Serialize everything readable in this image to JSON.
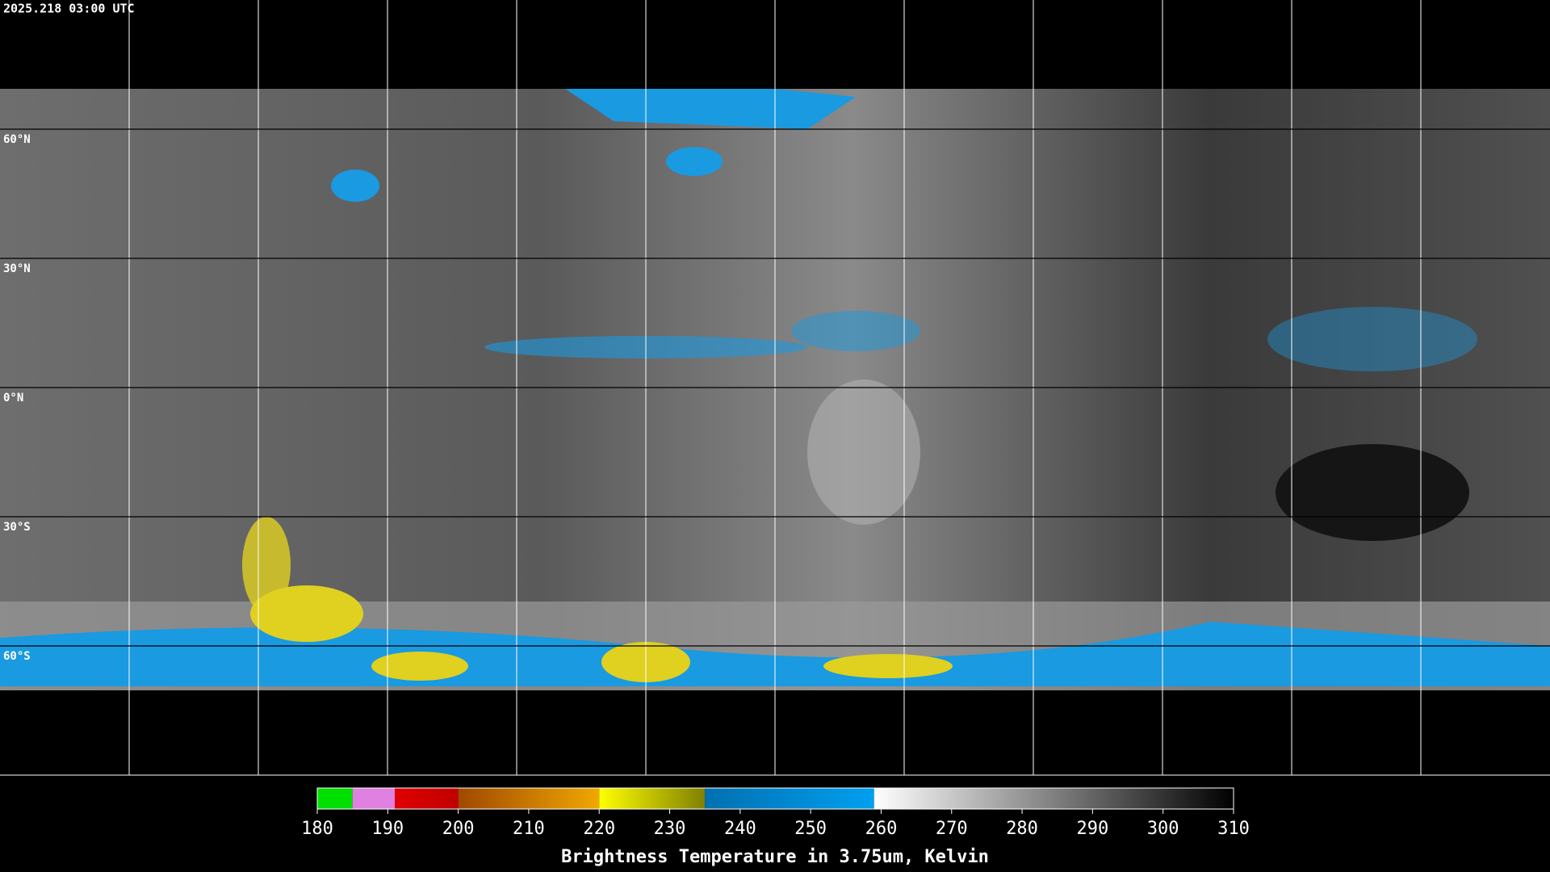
{
  "header": {
    "timestamp": "2025.218 03:00 UTC"
  },
  "map": {
    "lat_labels": [
      "60°N",
      "30°N",
      "0°N",
      "30°S",
      "60°S"
    ]
  },
  "colorbar": {
    "title": "Brightness Temperature in 3.75um, Kelvin",
    "min": 180,
    "max": 310,
    "ticks": [
      180,
      190,
      200,
      210,
      220,
      230,
      240,
      250,
      260,
      270,
      280,
      290,
      300,
      310
    ],
    "segments": [
      {
        "from": 180,
        "to": 185,
        "color_start": "#00e000",
        "color_end": "#00e000"
      },
      {
        "from": 185,
        "to": 191,
        "color_start": "#e080e0",
        "color_end": "#e080e0"
      },
      {
        "from": 191,
        "to": 200,
        "color_start": "#e00000",
        "color_end": "#c00000"
      },
      {
        "from": 200,
        "to": 220,
        "color_start": "#a04800",
        "color_end": "#f0a800"
      },
      {
        "from": 220,
        "to": 235,
        "color_start": "#ffff00",
        "color_end": "#808000"
      },
      {
        "from": 235,
        "to": 259,
        "color_start": "#0070b0",
        "color_end": "#00a0f0"
      },
      {
        "from": 259,
        "to": 310,
        "color_start": "#ffffff",
        "color_end": "#000000"
      }
    ]
  }
}
